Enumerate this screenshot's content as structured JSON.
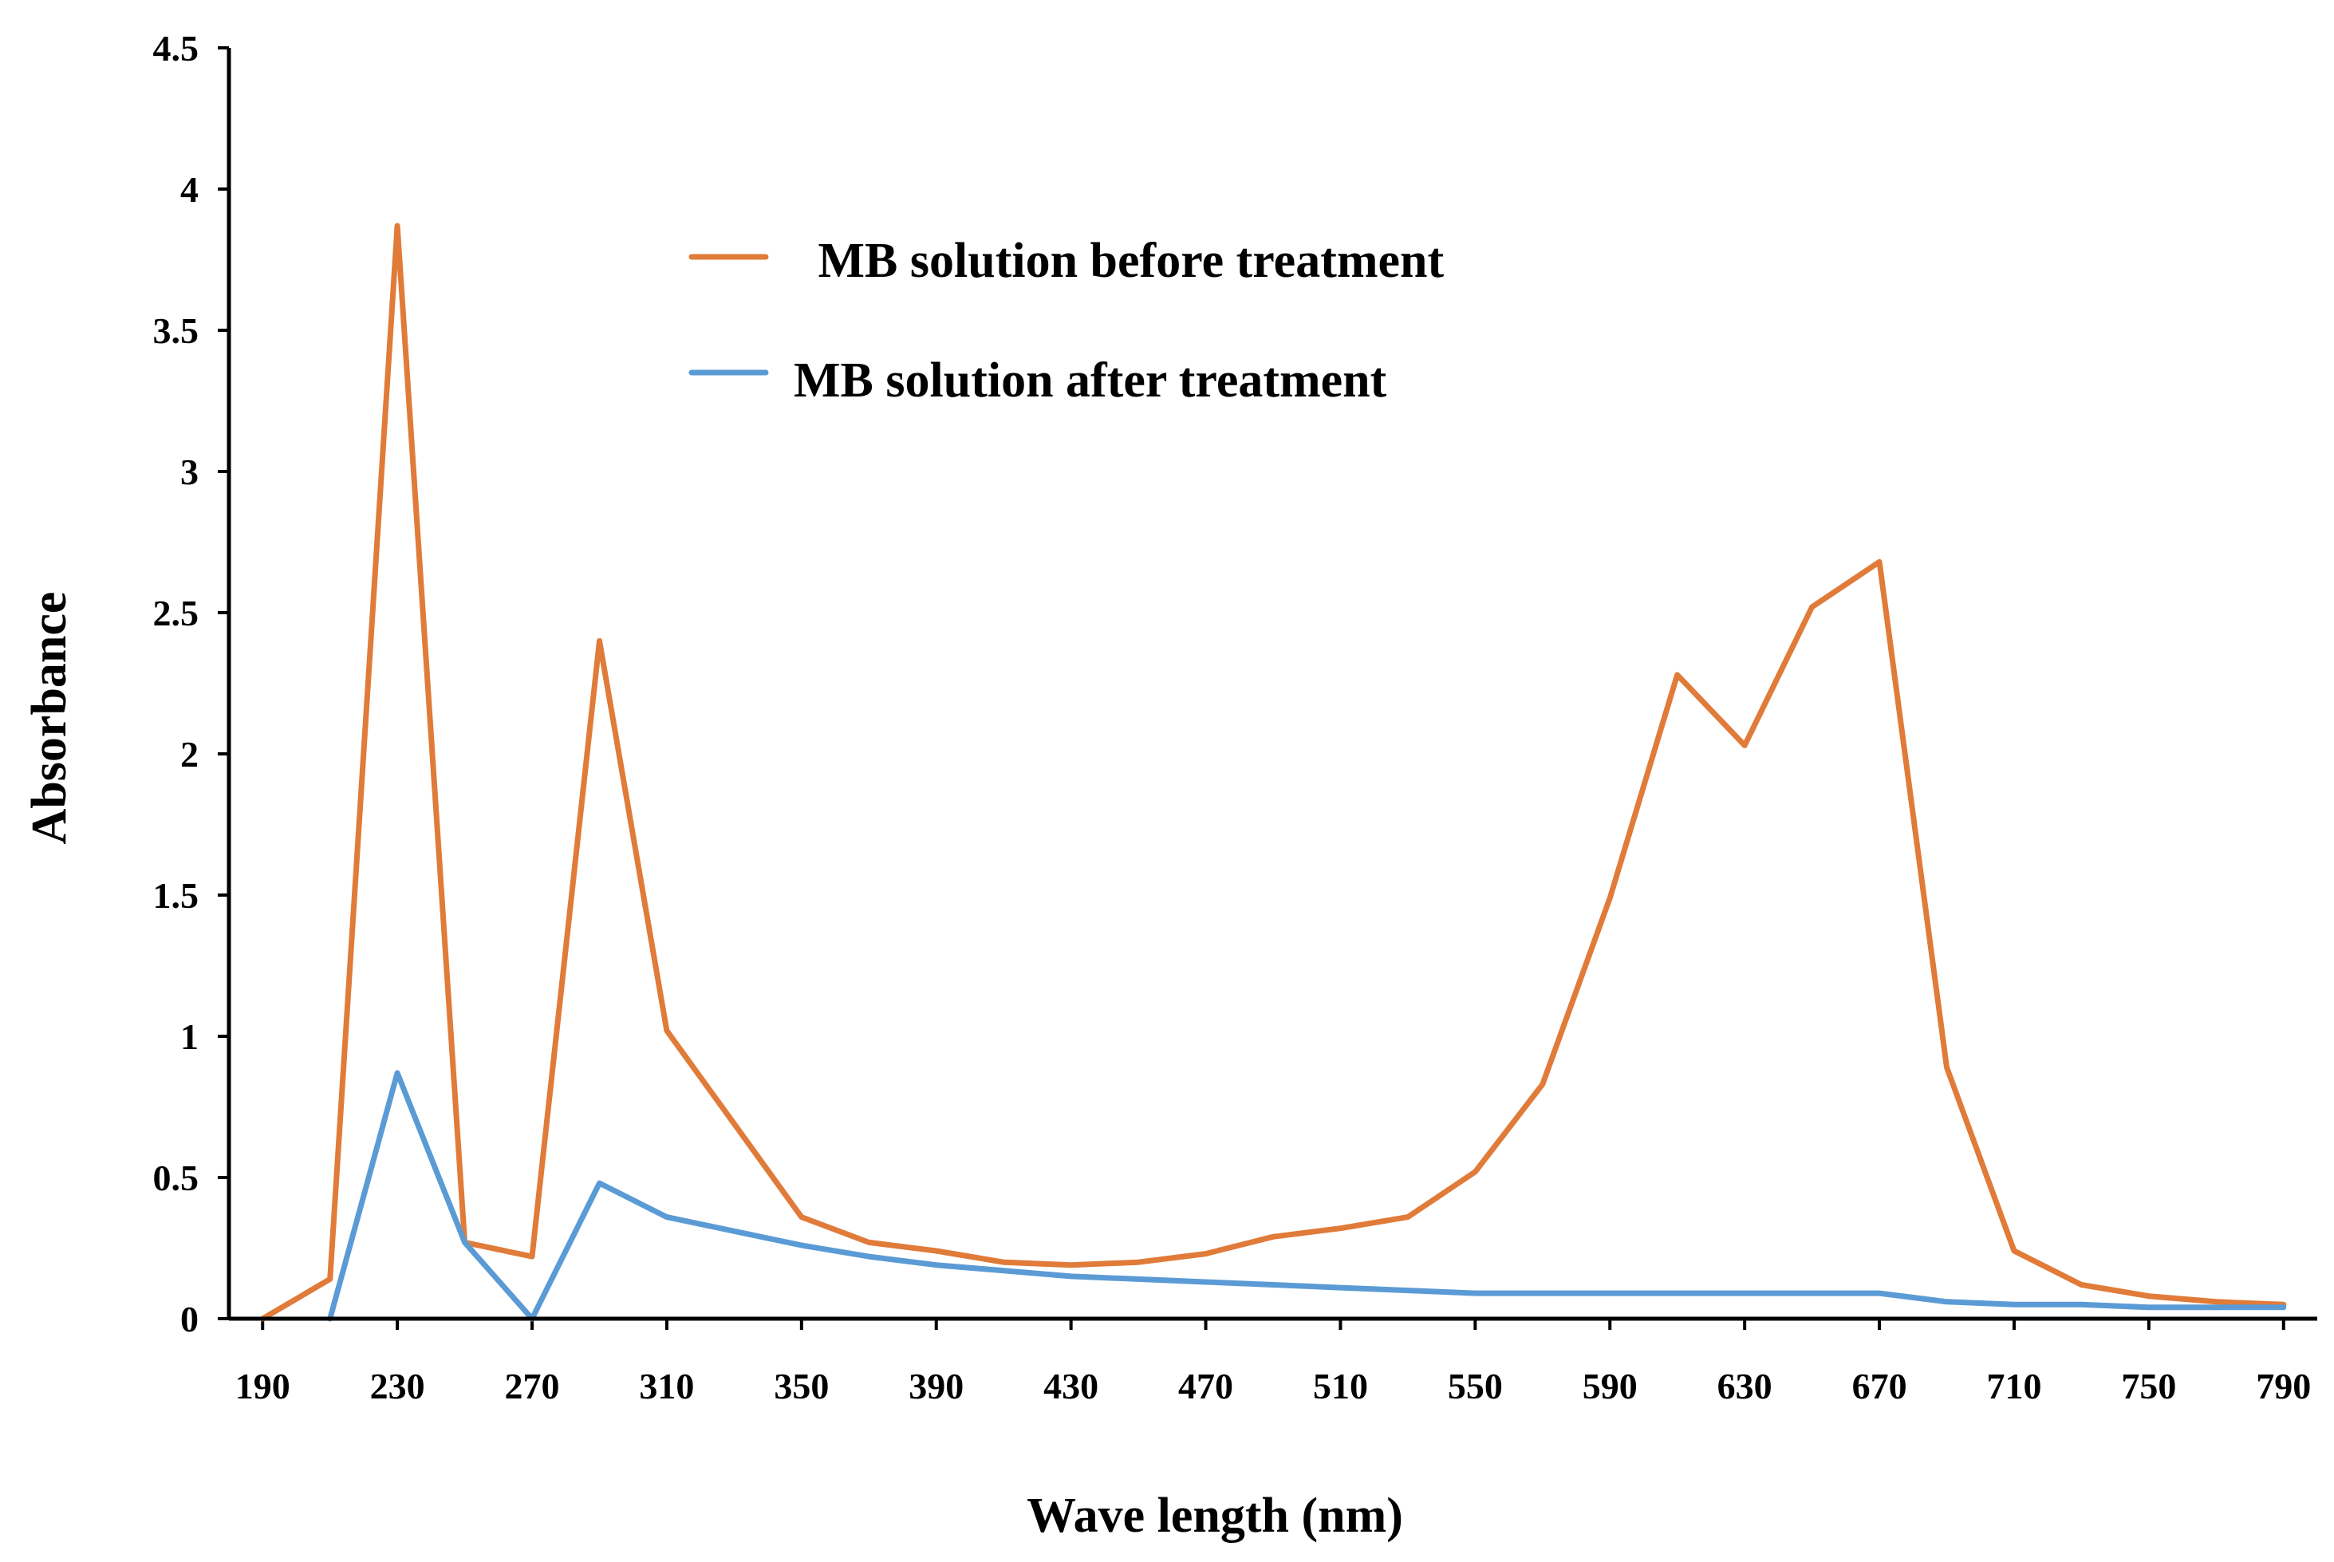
{
  "chart_data": {
    "type": "line",
    "title": "",
    "xlabel": "Wave length (nm)",
    "ylabel": "Absorbance",
    "xlim": [
      180,
      800
    ],
    "ylim": [
      0,
      4.5
    ],
    "x_ticks": [
      190,
      230,
      270,
      310,
      350,
      390,
      430,
      470,
      510,
      550,
      590,
      630,
      670,
      710,
      750,
      790
    ],
    "y_ticks": [
      0,
      0.5,
      1,
      1.5,
      2,
      2.5,
      3,
      3.5,
      4,
      4.5
    ],
    "y_tick_labels": [
      "0",
      "0.5",
      "1",
      "1.5",
      "2",
      "2.5",
      "3",
      "3.5",
      "4",
      "4.5"
    ],
    "legend_position": "top-center",
    "grid": false,
    "series": [
      {
        "name": " MB solution before treatment",
        "color": "#E07B39",
        "x": [
          190,
          210,
          230,
          250,
          270,
          290,
          310,
          330,
          350,
          370,
          390,
          410,
          430,
          450,
          470,
          490,
          510,
          530,
          550,
          570,
          590,
          610,
          630,
          650,
          670,
          690,
          710,
          730,
          750,
          770,
          790
        ],
        "values": [
          0.0,
          0.14,
          3.87,
          0.27,
          0.22,
          2.4,
          1.02,
          0.69,
          0.36,
          0.27,
          0.24,
          0.2,
          0.19,
          0.2,
          0.23,
          0.29,
          0.32,
          0.36,
          0.52,
          0.83,
          1.49,
          2.28,
          2.03,
          2.52,
          2.68,
          0.89,
          0.24,
          0.12,
          0.08,
          0.06,
          0.05
        ]
      },
      {
        "name": "MB solution after treatment",
        "color": "#5B9BD5",
        "x": [
          210,
          230,
          250,
          270,
          290,
          310,
          330,
          350,
          370,
          390,
          410,
          430,
          450,
          470,
          490,
          510,
          530,
          550,
          570,
          590,
          610,
          630,
          650,
          670,
          690,
          710,
          730,
          750,
          770,
          790
        ],
        "values": [
          0.0,
          0.87,
          0.27,
          0.0,
          0.48,
          0.36,
          0.31,
          0.26,
          0.22,
          0.19,
          0.17,
          0.15,
          0.14,
          0.13,
          0.12,
          0.11,
          0.1,
          0.09,
          0.09,
          0.09,
          0.09,
          0.09,
          0.09,
          0.09,
          0.06,
          0.05,
          0.05,
          0.04,
          0.04,
          0.04
        ]
      }
    ]
  }
}
